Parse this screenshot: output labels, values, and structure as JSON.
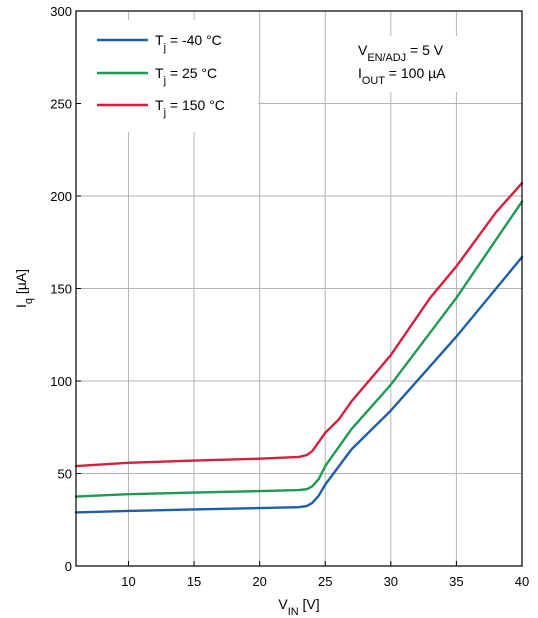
{
  "chart_data": {
    "type": "line",
    "title": "",
    "xlabel": {
      "main": "V",
      "sub": "IN",
      "unit": " [V]"
    },
    "ylabel": {
      "main": "I",
      "sub": "q",
      "unit": " [µA]"
    },
    "xlim": [
      6,
      40
    ],
    "ylim": [
      0,
      300
    ],
    "x_ticks": [
      10,
      15,
      20,
      25,
      30,
      35,
      40
    ],
    "y_ticks": [
      0,
      50,
      100,
      150,
      200,
      250,
      300
    ],
    "grid": true,
    "legend_position": "top-left",
    "annotation": {
      "line1": {
        "main": "V",
        "sub": "EN/ADJ",
        "rest": " = 5 V"
      },
      "line2": {
        "main": "I",
        "sub": "OUT",
        "rest": " = 100 µA"
      }
    },
    "series": [
      {
        "legend": {
          "main": "T",
          "sub": "j",
          "rest": " = -40 °C"
        },
        "color": "#1f5fa8",
        "points": [
          [
            6,
            29
          ],
          [
            10,
            29.8
          ],
          [
            15,
            30.6
          ],
          [
            20,
            31.3
          ],
          [
            23,
            31.8
          ],
          [
            23.6,
            32.5
          ],
          [
            24,
            34
          ],
          [
            24.5,
            38
          ],
          [
            25,
            44
          ],
          [
            27,
            63
          ],
          [
            30,
            84
          ],
          [
            35,
            124
          ],
          [
            40,
            167
          ]
        ]
      },
      {
        "legend": {
          "main": "T",
          "sub": "j",
          "rest": " = 25 °C"
        },
        "color": "#1e9a52",
        "points": [
          [
            6,
            37.5
          ],
          [
            10,
            38.8
          ],
          [
            15,
            39.7
          ],
          [
            20,
            40.5
          ],
          [
            23,
            41
          ],
          [
            23.6,
            41.5
          ],
          [
            24,
            43
          ],
          [
            24.5,
            47
          ],
          [
            25,
            54
          ],
          [
            27,
            74
          ],
          [
            30,
            98
          ],
          [
            35,
            145
          ],
          [
            40,
            197
          ]
        ]
      },
      {
        "legend": {
          "main": "T",
          "sub": "j",
          "rest": " = 150 °C"
        },
        "color": "#d4203e",
        "points": [
          [
            6,
            54
          ],
          [
            10,
            55.8
          ],
          [
            15,
            57
          ],
          [
            20,
            58
          ],
          [
            23,
            59
          ],
          [
            23.6,
            60
          ],
          [
            24,
            62
          ],
          [
            24.5,
            67
          ],
          [
            25,
            72
          ],
          [
            26,
            79
          ],
          [
            27,
            89
          ],
          [
            30,
            114
          ],
          [
            33,
            145
          ],
          [
            35,
            162
          ],
          [
            38,
            191
          ],
          [
            40,
            207
          ]
        ]
      }
    ]
  }
}
